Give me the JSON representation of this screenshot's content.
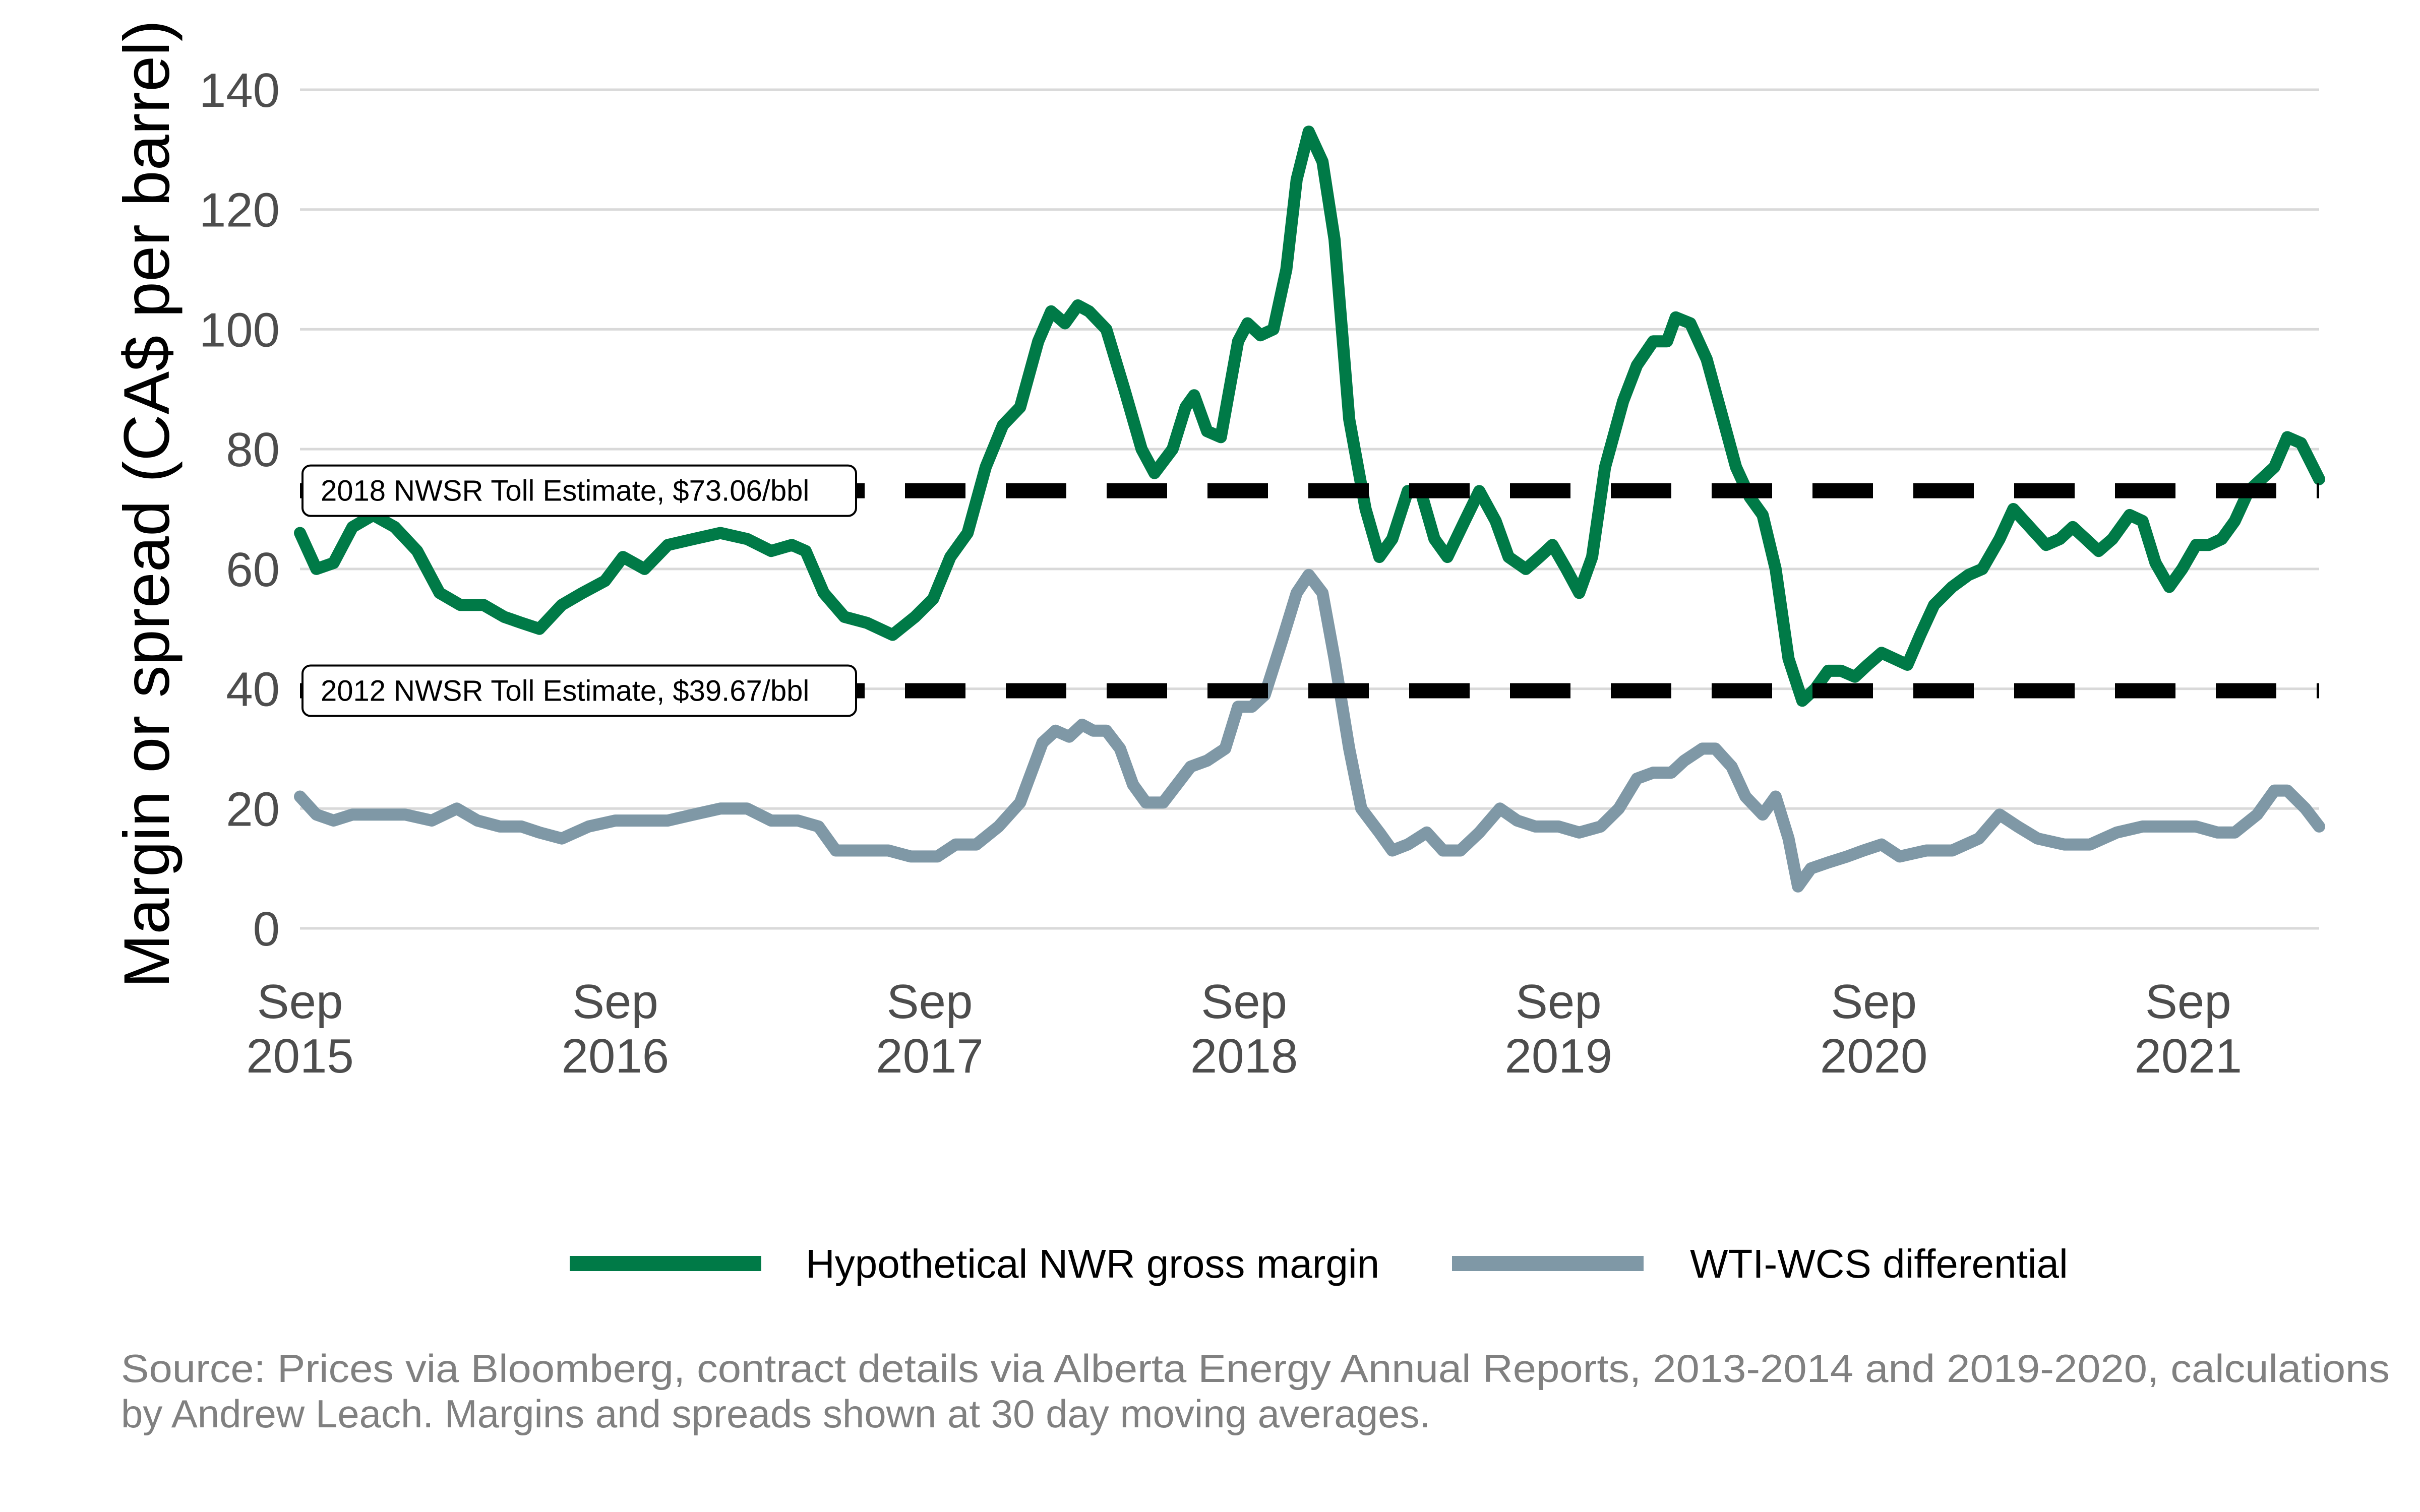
{
  "chart_data": {
    "type": "line",
    "title": "",
    "xlabel": "",
    "ylabel": "Margin or spread (CA$ per barrel)",
    "ylim": [
      0,
      140
    ],
    "xlim": [
      "2015-09-01",
      "2022-01-31"
    ],
    "grid": "horizontal",
    "legend_position": "bottom",
    "y_ticks": [
      0,
      20,
      40,
      60,
      80,
      100,
      120,
      140
    ],
    "x_ticks": [
      {
        "date": "2015-09-01",
        "line1": "Sep",
        "line2": "2015"
      },
      {
        "date": "2016-09-01",
        "line1": "Sep",
        "line2": "2016"
      },
      {
        "date": "2017-09-01",
        "line1": "Sep",
        "line2": "2017"
      },
      {
        "date": "2018-09-01",
        "line1": "Sep",
        "line2": "2018"
      },
      {
        "date": "2019-09-01",
        "line1": "Sep",
        "line2": "2019"
      },
      {
        "date": "2020-09-01",
        "line1": "Sep",
        "line2": "2020"
      },
      {
        "date": "2021-09-01",
        "line1": "Sep",
        "line2": "2021"
      }
    ],
    "reference_lines": [
      {
        "label": "2018 NWSR Toll Estimate, $73.06/bbl",
        "y": 73.06
      },
      {
        "label": "2012 NWSR Toll Estimate, $39.67/bbl",
        "y": 39.67
      }
    ],
    "series": [
      {
        "name": "Hypothetical NWR gross margin",
        "color": "#007a47",
        "points": [
          [
            "2015-09-01",
            66
          ],
          [
            "2015-09-20",
            60
          ],
          [
            "2015-10-10",
            61
          ],
          [
            "2015-11-01",
            67
          ],
          [
            "2015-11-25",
            69
          ],
          [
            "2015-12-20",
            67
          ],
          [
            "2016-01-15",
            63
          ],
          [
            "2016-02-10",
            56
          ],
          [
            "2016-03-05",
            54
          ],
          [
            "2016-04-01",
            54
          ],
          [
            "2016-04-25",
            52
          ],
          [
            "2016-05-15",
            51
          ],
          [
            "2016-06-05",
            50
          ],
          [
            "2016-07-01",
            54
          ],
          [
            "2016-07-25",
            56
          ],
          [
            "2016-08-20",
            58
          ],
          [
            "2016-09-10",
            62
          ],
          [
            "2016-10-05",
            60
          ],
          [
            "2016-11-01",
            64
          ],
          [
            "2016-12-01",
            65
          ],
          [
            "2017-01-01",
            66
          ],
          [
            "2017-02-01",
            65
          ],
          [
            "2017-03-01",
            63
          ],
          [
            "2017-03-25",
            64
          ],
          [
            "2017-04-10",
            63
          ],
          [
            "2017-05-01",
            56
          ],
          [
            "2017-05-25",
            52
          ],
          [
            "2017-06-20",
            51
          ],
          [
            "2017-07-20",
            49
          ],
          [
            "2017-08-15",
            52
          ],
          [
            "2017-09-05",
            55
          ],
          [
            "2017-09-25",
            62
          ],
          [
            "2017-10-15",
            66
          ],
          [
            "2017-11-05",
            77
          ],
          [
            "2017-11-25",
            84
          ],
          [
            "2017-12-15",
            87
          ],
          [
            "2018-01-05",
            98
          ],
          [
            "2018-01-20",
            103
          ],
          [
            "2018-02-05",
            101
          ],
          [
            "2018-02-20",
            104
          ],
          [
            "2018-03-05",
            103
          ],
          [
            "2018-03-25",
            100
          ],
          [
            "2018-04-15",
            90
          ],
          [
            "2018-05-05",
            80
          ],
          [
            "2018-05-20",
            76
          ],
          [
            "2018-06-10",
            80
          ],
          [
            "2018-06-25",
            87
          ],
          [
            "2018-07-05",
            89
          ],
          [
            "2018-07-20",
            83
          ],
          [
            "2018-08-05",
            82
          ],
          [
            "2018-08-25",
            98
          ],
          [
            "2018-09-05",
            101
          ],
          [
            "2018-09-20",
            99
          ],
          [
            "2018-10-05",
            100
          ],
          [
            "2018-10-20",
            110
          ],
          [
            "2018-11-01",
            125
          ],
          [
            "2018-11-15",
            133
          ],
          [
            "2018-12-01",
            128
          ],
          [
            "2018-12-15",
            115
          ],
          [
            "2019-01-01",
            85
          ],
          [
            "2019-01-20",
            70
          ],
          [
            "2019-02-05",
            62
          ],
          [
            "2019-02-20",
            65
          ],
          [
            "2019-03-10",
            73
          ],
          [
            "2019-03-25",
            73
          ],
          [
            "2019-04-10",
            65
          ],
          [
            "2019-04-25",
            62
          ],
          [
            "2019-05-15",
            68
          ],
          [
            "2019-06-01",
            73
          ],
          [
            "2019-06-20",
            68
          ],
          [
            "2019-07-05",
            62
          ],
          [
            "2019-07-25",
            60
          ],
          [
            "2019-08-10",
            62
          ],
          [
            "2019-08-25",
            64
          ],
          [
            "2019-09-10",
            60
          ],
          [
            "2019-09-25",
            56
          ],
          [
            "2019-10-10",
            62
          ],
          [
            "2019-10-25",
            77
          ],
          [
            "2019-11-15",
            88
          ],
          [
            "2019-12-01",
            94
          ],
          [
            "2019-12-20",
            98
          ],
          [
            "2020-01-05",
            98
          ],
          [
            "2020-01-15",
            102
          ],
          [
            "2020-02-01",
            101
          ],
          [
            "2020-02-20",
            95
          ],
          [
            "2020-03-10",
            85
          ],
          [
            "2020-03-25",
            77
          ],
          [
            "2020-04-10",
            72
          ],
          [
            "2020-04-25",
            69
          ],
          [
            "2020-05-10",
            60
          ],
          [
            "2020-05-25",
            45
          ],
          [
            "2020-06-10",
            38
          ],
          [
            "2020-06-25",
            40
          ],
          [
            "2020-07-10",
            43
          ],
          [
            "2020-07-25",
            43
          ],
          [
            "2020-08-10",
            42
          ],
          [
            "2020-08-25",
            44
          ],
          [
            "2020-09-10",
            46
          ],
          [
            "2020-09-25",
            45
          ],
          [
            "2020-10-10",
            44
          ],
          [
            "2020-10-25",
            49
          ],
          [
            "2020-11-10",
            54
          ],
          [
            "2020-12-01",
            57
          ],
          [
            "2020-12-20",
            59
          ],
          [
            "2021-01-05",
            60
          ],
          [
            "2021-01-25",
            65
          ],
          [
            "2021-02-10",
            70
          ],
          [
            "2021-03-01",
            67
          ],
          [
            "2021-03-20",
            64
          ],
          [
            "2021-04-05",
            65
          ],
          [
            "2021-04-20",
            67
          ],
          [
            "2021-05-05",
            65
          ],
          [
            "2021-05-20",
            63
          ],
          [
            "2021-06-05",
            65
          ],
          [
            "2021-06-25",
            69
          ],
          [
            "2021-07-10",
            68
          ],
          [
            "2021-07-25",
            61
          ],
          [
            "2021-08-10",
            57
          ],
          [
            "2021-08-25",
            60
          ],
          [
            "2021-09-10",
            64
          ],
          [
            "2021-09-25",
            64
          ],
          [
            "2021-10-10",
            65
          ],
          [
            "2021-10-25",
            68
          ],
          [
            "2021-11-10",
            73
          ],
          [
            "2021-11-25",
            75
          ],
          [
            "2021-12-10",
            77
          ],
          [
            "2021-12-25",
            82
          ],
          [
            "2022-01-10",
            81
          ],
          [
            "2022-01-31",
            75
          ]
        ]
      },
      {
        "name": "WTI-WCS differential",
        "color": "#7f98a6",
        "points": [
          [
            "2015-09-01",
            22
          ],
          [
            "2015-09-20",
            19
          ],
          [
            "2015-10-10",
            18
          ],
          [
            "2015-11-01",
            19
          ],
          [
            "2015-12-01",
            19
          ],
          [
            "2016-01-01",
            19
          ],
          [
            "2016-02-01",
            18
          ],
          [
            "2016-03-01",
            20
          ],
          [
            "2016-03-25",
            18
          ],
          [
            "2016-04-20",
            17
          ],
          [
            "2016-05-15",
            17
          ],
          [
            "2016-06-05",
            16
          ],
          [
            "2016-07-01",
            15
          ],
          [
            "2016-08-01",
            17
          ],
          [
            "2016-09-01",
            18
          ],
          [
            "2016-10-01",
            18
          ],
          [
            "2016-11-01",
            18
          ],
          [
            "2016-12-01",
            19
          ],
          [
            "2017-01-01",
            20
          ],
          [
            "2017-02-01",
            20
          ],
          [
            "2017-03-01",
            18
          ],
          [
            "2017-04-01",
            18
          ],
          [
            "2017-04-25",
            17
          ],
          [
            "2017-05-15",
            13
          ],
          [
            "2017-06-15",
            13
          ],
          [
            "2017-07-15",
            13
          ],
          [
            "2017-08-10",
            12
          ],
          [
            "2017-09-10",
            12
          ],
          [
            "2017-10-01",
            14
          ],
          [
            "2017-10-25",
            14
          ],
          [
            "2017-11-20",
            17
          ],
          [
            "2017-12-15",
            21
          ],
          [
            "2018-01-10",
            31
          ],
          [
            "2018-01-25",
            33
          ],
          [
            "2018-02-10",
            32
          ],
          [
            "2018-02-25",
            34
          ],
          [
            "2018-03-10",
            33
          ],
          [
            "2018-03-25",
            33
          ],
          [
            "2018-04-10",
            30
          ],
          [
            "2018-04-25",
            24
          ],
          [
            "2018-05-10",
            21
          ],
          [
            "2018-05-30",
            21
          ],
          [
            "2018-06-15",
            24
          ],
          [
            "2018-07-01",
            27
          ],
          [
            "2018-07-20",
            28
          ],
          [
            "2018-08-10",
            30
          ],
          [
            "2018-08-25",
            37
          ],
          [
            "2018-09-10",
            37
          ],
          [
            "2018-09-25",
            39
          ],
          [
            "2018-10-15",
            48
          ],
          [
            "2018-11-01",
            56
          ],
          [
            "2018-11-15",
            59
          ],
          [
            "2018-12-01",
            56
          ],
          [
            "2018-12-15",
            45
          ],
          [
            "2019-01-01",
            30
          ],
          [
            "2019-01-15",
            20
          ],
          [
            "2019-02-05",
            16
          ],
          [
            "2019-02-20",
            13
          ],
          [
            "2019-03-10",
            14
          ],
          [
            "2019-04-01",
            16
          ],
          [
            "2019-04-20",
            13
          ],
          [
            "2019-05-10",
            13
          ],
          [
            "2019-06-01",
            16
          ],
          [
            "2019-06-25",
            20
          ],
          [
            "2019-07-15",
            18
          ],
          [
            "2019-08-05",
            17
          ],
          [
            "2019-09-01",
            17
          ],
          [
            "2019-09-25",
            16
          ],
          [
            "2019-10-20",
            17
          ],
          [
            "2019-11-10",
            20
          ],
          [
            "2019-12-01",
            25
          ],
          [
            "2019-12-20",
            26
          ],
          [
            "2020-01-10",
            26
          ],
          [
            "2020-01-25",
            28
          ],
          [
            "2020-02-15",
            30
          ],
          [
            "2020-03-01",
            30
          ],
          [
            "2020-03-20",
            27
          ],
          [
            "2020-04-05",
            22
          ],
          [
            "2020-04-25",
            19
          ],
          [
            "2020-05-10",
            22
          ],
          [
            "2020-05-25",
            15
          ],
          [
            "2020-06-05",
            7
          ],
          [
            "2020-06-20",
            10
          ],
          [
            "2020-07-10",
            11
          ],
          [
            "2020-08-01",
            12
          ],
          [
            "2020-08-20",
            13
          ],
          [
            "2020-09-10",
            14
          ],
          [
            "2020-10-01",
            12
          ],
          [
            "2020-11-01",
            13
          ],
          [
            "2020-12-01",
            13
          ],
          [
            "2021-01-01",
            15
          ],
          [
            "2021-01-25",
            19
          ],
          [
            "2021-02-15",
            17
          ],
          [
            "2021-03-10",
            15
          ],
          [
            "2021-04-10",
            14
          ],
          [
            "2021-05-10",
            14
          ],
          [
            "2021-06-10",
            16
          ],
          [
            "2021-07-10",
            17
          ],
          [
            "2021-08-10",
            17
          ],
          [
            "2021-09-10",
            17
          ],
          [
            "2021-10-05",
            16
          ],
          [
            "2021-10-25",
            16
          ],
          [
            "2021-11-20",
            19
          ],
          [
            "2021-12-10",
            23
          ],
          [
            "2021-12-25",
            23
          ],
          [
            "2022-01-15",
            20
          ],
          [
            "2022-01-31",
            17
          ]
        ]
      }
    ],
    "caption_line1": "Source: Prices via Bloomberg, contract details via Alberta Energy Annual Reports, 2013-2014 and 2019-2020, calculations",
    "caption_line2": "by Andrew Leach. Margins and spreads shown at 30 day moving averages."
  }
}
